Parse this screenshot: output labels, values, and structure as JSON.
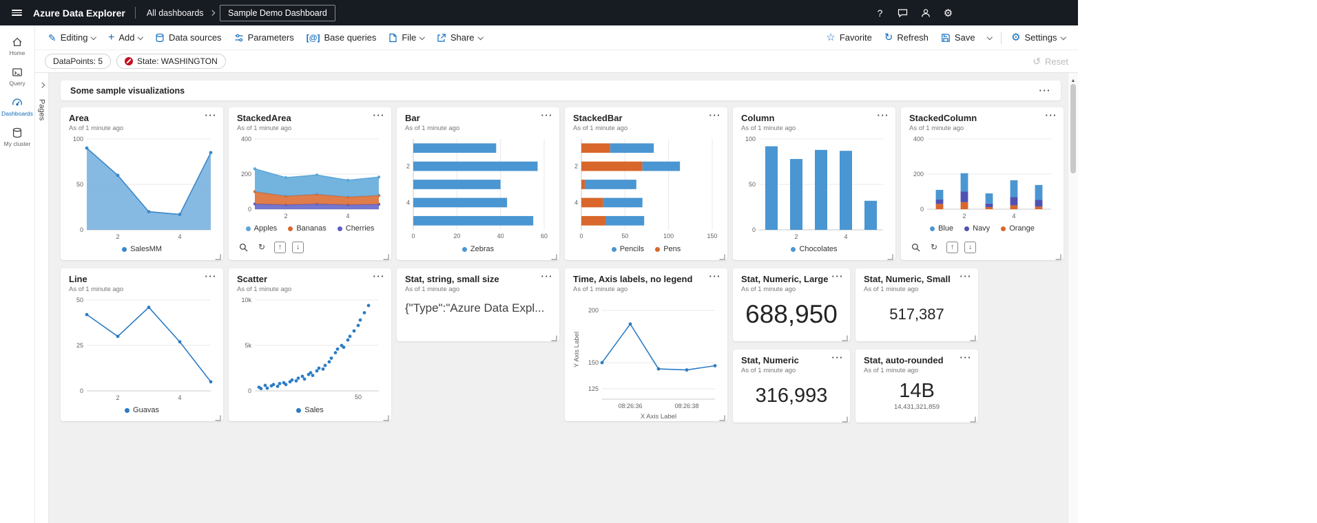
{
  "colors": {
    "accent": "#0f6cbd",
    "header_bg": "#171b22",
    "chart_blue": "#4a96d2",
    "chart_light_blue": "#5ba7d9",
    "chart_orange": "#d9662b",
    "chart_purple": "#5b5fc7",
    "chart_navy": "#4f52b2",
    "error_red": "#c50f1f"
  },
  "icons": {
    "topbar": [
      "hamburger-menu-icon",
      "help-icon",
      "feedback-icon",
      "account-icon",
      "settings-gear-icon"
    ],
    "toolbar": [
      "pencil-icon",
      "plus-icon",
      "database-icon",
      "parameters-icon",
      "braces-icon",
      "file-icon",
      "share-icon",
      "star-icon",
      "refresh-icon",
      "save-icon",
      "chevron-down-icon",
      "gear-icon"
    ],
    "filter": [
      "blocked-error-icon",
      "reset-undo-icon"
    ],
    "tile": [
      "ellipsis-menu-icon",
      "zoom-icon",
      "cycle-icon",
      "arrow-up-icon",
      "arrow-down-icon",
      "resize-corner-icon"
    ],
    "scrollbar": [
      "scroll-up-arrow-icon"
    ]
  },
  "topbar": {
    "app_title": "Azure Data Explorer",
    "breadcrumb": "All dashboards",
    "dashboard_name": "Sample Demo Dashboard"
  },
  "toolbar": {
    "editing": "Editing",
    "add": "Add",
    "data_sources": "Data sources",
    "parameters": "Parameters",
    "base_queries": "Base queries",
    "file": "File",
    "share": "Share",
    "favorite": "Favorite",
    "refresh": "Refresh",
    "save": "Save",
    "settings": "Settings"
  },
  "filterbar": {
    "pills": [
      {
        "label": "DataPoints: 5",
        "error": false
      },
      {
        "label": "State: WASHINGTON",
        "error": true
      }
    ],
    "reset_label": "Reset"
  },
  "sidebar": {
    "items": [
      {
        "id": "home",
        "label": "Home",
        "active": false
      },
      {
        "id": "query",
        "label": "Query",
        "active": false
      },
      {
        "id": "dashboards",
        "label": "Dashboards",
        "active": true
      },
      {
        "id": "my-cluster",
        "label": "My cluster",
        "active": false
      }
    ]
  },
  "pages_panel": {
    "label": "Pages"
  },
  "section": {
    "title": "Some sample visualizations"
  },
  "tiles": [
    {
      "id": "area",
      "title": "Area",
      "subtitle": "As of 1 minute ago",
      "type": "area",
      "chart": {
        "yticks": [
          0,
          50,
          100
        ],
        "ymax": 100,
        "xticks": [
          {
            "i": 1,
            "label": "2"
          },
          {
            "i": 3,
            "label": "4"
          }
        ],
        "series": [
          {
            "name": "SalesMM",
            "color": "#69a9dc",
            "line": "#3a87c8",
            "values": [
              90,
              60,
              20,
              17,
              85
            ]
          }
        ]
      },
      "legend": [
        {
          "label": "SalesMM",
          "color": "#3a87c8"
        }
      ]
    },
    {
      "id": "stackedarea",
      "title": "StackedArea",
      "subtitle": "As of 1 minute ago",
      "type": "stackedarea",
      "toolbar_icons": true,
      "chart": {
        "yticks": [
          0,
          200,
          400
        ],
        "ymax": 400,
        "xticks": [
          {
            "i": 1,
            "label": "2"
          },
          {
            "i": 3,
            "label": "4"
          }
        ],
        "series": [
          {
            "name": "Cherries",
            "color": "#5b5fc7",
            "values": [
              30,
              25,
              30,
              25,
              28
            ]
          },
          {
            "name": "Bananas",
            "color": "#d9662b",
            "values": [
              70,
              50,
              55,
              45,
              50
            ]
          },
          {
            "name": "Apples",
            "color": "#5ba7d9",
            "values": [
              130,
              105,
              110,
              95,
              105
            ]
          }
        ]
      },
      "legend": [
        {
          "label": "Apples",
          "color": "#5ba7d9"
        },
        {
          "label": "Bananas",
          "color": "#d9662b"
        },
        {
          "label": "Cherries",
          "color": "#5b5fc7"
        }
      ]
    },
    {
      "id": "bar",
      "title": "Bar",
      "subtitle": "As of 1 minute ago",
      "type": "bar",
      "chart": {
        "xticks": [
          0,
          20,
          40,
          60
        ],
        "xmax": 60,
        "cat_ticks": [
          {
            "i": 1,
            "label": "2"
          },
          {
            "i": 3,
            "label": "4"
          }
        ],
        "series": [
          {
            "name": "Zebras",
            "color": "#4a96d2",
            "values": [
              38,
              57,
              40,
              43,
              55
            ]
          }
        ]
      },
      "legend": [
        {
          "label": "Zebras",
          "color": "#4a96d2"
        }
      ]
    },
    {
      "id": "stackedbar",
      "title": "StackedBar",
      "subtitle": "As of 1 minute ago",
      "type": "stackedbar",
      "chart": {
        "xticks": [
          0,
          50,
          100,
          150
        ],
        "xmax": 150,
        "cat_ticks": [
          {
            "i": 1,
            "label": "2"
          },
          {
            "i": 3,
            "label": "4"
          }
        ],
        "series": [
          {
            "name": "Pens",
            "color": "#d9662b",
            "values": [
              33,
              70,
              4,
              25,
              28
            ]
          },
          {
            "name": "Pencils",
            "color": "#4a96d2",
            "values": [
              50,
              43,
              59,
              45,
              44
            ]
          }
        ]
      },
      "legend": [
        {
          "label": "Pencils",
          "color": "#4a96d2"
        },
        {
          "label": "Pens",
          "color": "#d9662b"
        }
      ]
    },
    {
      "id": "column",
      "title": "Column",
      "subtitle": "As of 1 minute ago",
      "type": "column",
      "chart": {
        "yticks": [
          0,
          50,
          100
        ],
        "ymax": 100,
        "xticks": [
          {
            "i": 1,
            "label": "2"
          },
          {
            "i": 3,
            "label": "4"
          }
        ],
        "series": [
          {
            "name": "Chocolates",
            "color": "#4a96d2",
            "values": [
              92,
              78,
              88,
              87,
              32
            ]
          }
        ]
      },
      "legend": [
        {
          "label": "Chocolates",
          "color": "#4a96d2"
        }
      ]
    },
    {
      "id": "stackedcolumn",
      "title": "StackedColumn",
      "subtitle": "As of 1 minute ago",
      "type": "stackedcolumn",
      "toolbar_icons": true,
      "chart": {
        "yticks": [
          0,
          200,
          400
        ],
        "ymax": 400,
        "xticks": [
          {
            "i": 1,
            "label": "2"
          },
          {
            "i": 3,
            "label": "4"
          }
        ],
        "series": [
          {
            "name": "Orange",
            "color": "#d9662b",
            "values": [
              30,
              40,
              12,
              22,
              15
            ]
          },
          {
            "name": "Navy",
            "color": "#4f52b2",
            "values": [
              25,
              60,
              20,
              48,
              38
            ]
          },
          {
            "name": "Blue",
            "color": "#4a96d2",
            "values": [
              55,
              105,
              58,
              95,
              85
            ]
          }
        ]
      },
      "legend": [
        {
          "label": "Blue",
          "color": "#4a96d2"
        },
        {
          "label": "Navy",
          "color": "#4f52b2"
        },
        {
          "label": "Orange",
          "color": "#d9662b"
        }
      ]
    },
    {
      "id": "line",
      "title": "Line",
      "subtitle": "As of 1 minute ago",
      "type": "line",
      "chart": {
        "yticks": [
          0,
          25,
          50
        ],
        "ymax": 50,
        "xticks": [
          {
            "i": 1,
            "label": "2"
          },
          {
            "i": 3,
            "label": "4"
          }
        ],
        "series": [
          {
            "name": "Guavas",
            "color": "#2b7cc4",
            "values": [
              42,
              30,
              46,
              27,
              5
            ]
          }
        ]
      },
      "legend": [
        {
          "label": "Guavas",
          "color": "#2b7cc4"
        }
      ]
    },
    {
      "id": "scatter",
      "title": "Scatter",
      "subtitle": "As of 1 minute ago",
      "type": "scatter",
      "chart": {
        "yticks": [
          {
            "v": 0,
            "label": "0"
          },
          {
            "v": 5000,
            "label": "5k"
          },
          {
            "v": 10000,
            "label": "10k"
          }
        ],
        "ymax": 10000,
        "xticks": [
          {
            "v": 50,
            "label": "50"
          }
        ],
        "xmax": 60,
        "series": [
          {
            "name": "Sales",
            "color": "#2b7cc4",
            "points": [
              [
                2,
                400
              ],
              [
                3,
                250
              ],
              [
                5,
                600
              ],
              [
                6,
                300
              ],
              [
                8,
                550
              ],
              [
                9,
                700
              ],
              [
                11,
                500
              ],
              [
                12,
                800
              ],
              [
                14,
                900
              ],
              [
                15,
                700
              ],
              [
                17,
                1000
              ],
              [
                18,
                1200
              ],
              [
                20,
                1100
              ],
              [
                21,
                1400
              ],
              [
                23,
                1600
              ],
              [
                24,
                1300
              ],
              [
                26,
                1800
              ],
              [
                27,
                2000
              ],
              [
                28,
                1700
              ],
              [
                30,
                2200
              ],
              [
                31,
                2500
              ],
              [
                33,
                2400
              ],
              [
                34,
                2800
              ],
              [
                36,
                3200
              ],
              [
                37,
                3600
              ],
              [
                39,
                4200
              ],
              [
                40,
                4600
              ],
              [
                42,
                5000
              ],
              [
                43,
                4800
              ],
              [
                45,
                5600
              ],
              [
                46,
                6000
              ],
              [
                48,
                6600
              ],
              [
                50,
                7200
              ],
              [
                51,
                7800
              ],
              [
                53,
                8600
              ],
              [
                55,
                9400
              ]
            ]
          }
        ]
      },
      "legend": [
        {
          "label": "Sales",
          "color": "#2b7cc4"
        }
      ]
    },
    {
      "id": "stat-string",
      "title": "Stat, string, small size",
      "subtitle": "As of 1 minute ago",
      "type": "text",
      "value": "{\"Type\":\"Azure Data Expl..."
    },
    {
      "id": "time",
      "title": "Time, Axis labels, no legend",
      "subtitle": "As of 1 minute ago",
      "type": "line",
      "ylabel": "Y Axis Label",
      "xlabel": "X Axis Label",
      "chart": {
        "yticks": [
          125,
          150,
          200
        ],
        "ymin": 115,
        "ymax": 210,
        "xticks": [
          {
            "i": 1,
            "label": "08:26:36"
          },
          {
            "i": 3,
            "label": "08:26:38"
          }
        ],
        "series": [
          {
            "name": "",
            "color": "#2b7cc4",
            "values": [
              150,
              187,
              144,
              143,
              147
            ]
          }
        ]
      }
    },
    {
      "id": "stat-large",
      "title": "Stat, Numeric, Large",
      "subtitle": "As of 1 minute ago",
      "type": "stat",
      "value": "688,950",
      "size": "large"
    },
    {
      "id": "stat-small",
      "title": "Stat, Numeric, Small",
      "subtitle": "As of 1 minute ago",
      "type": "stat",
      "value": "517,387",
      "size": "small"
    },
    {
      "id": "stat-numeric",
      "title": "Stat, Numeric",
      "subtitle": "As of 1 minute ago",
      "type": "stat",
      "value": "316,993",
      "size": "medium"
    },
    {
      "id": "stat-rounded",
      "title": "Stat, auto-rounded",
      "subtitle": "As of 1 minute ago",
      "type": "stat",
      "value": "14B",
      "sub": "14,431,321,859",
      "size": "medium"
    }
  ]
}
